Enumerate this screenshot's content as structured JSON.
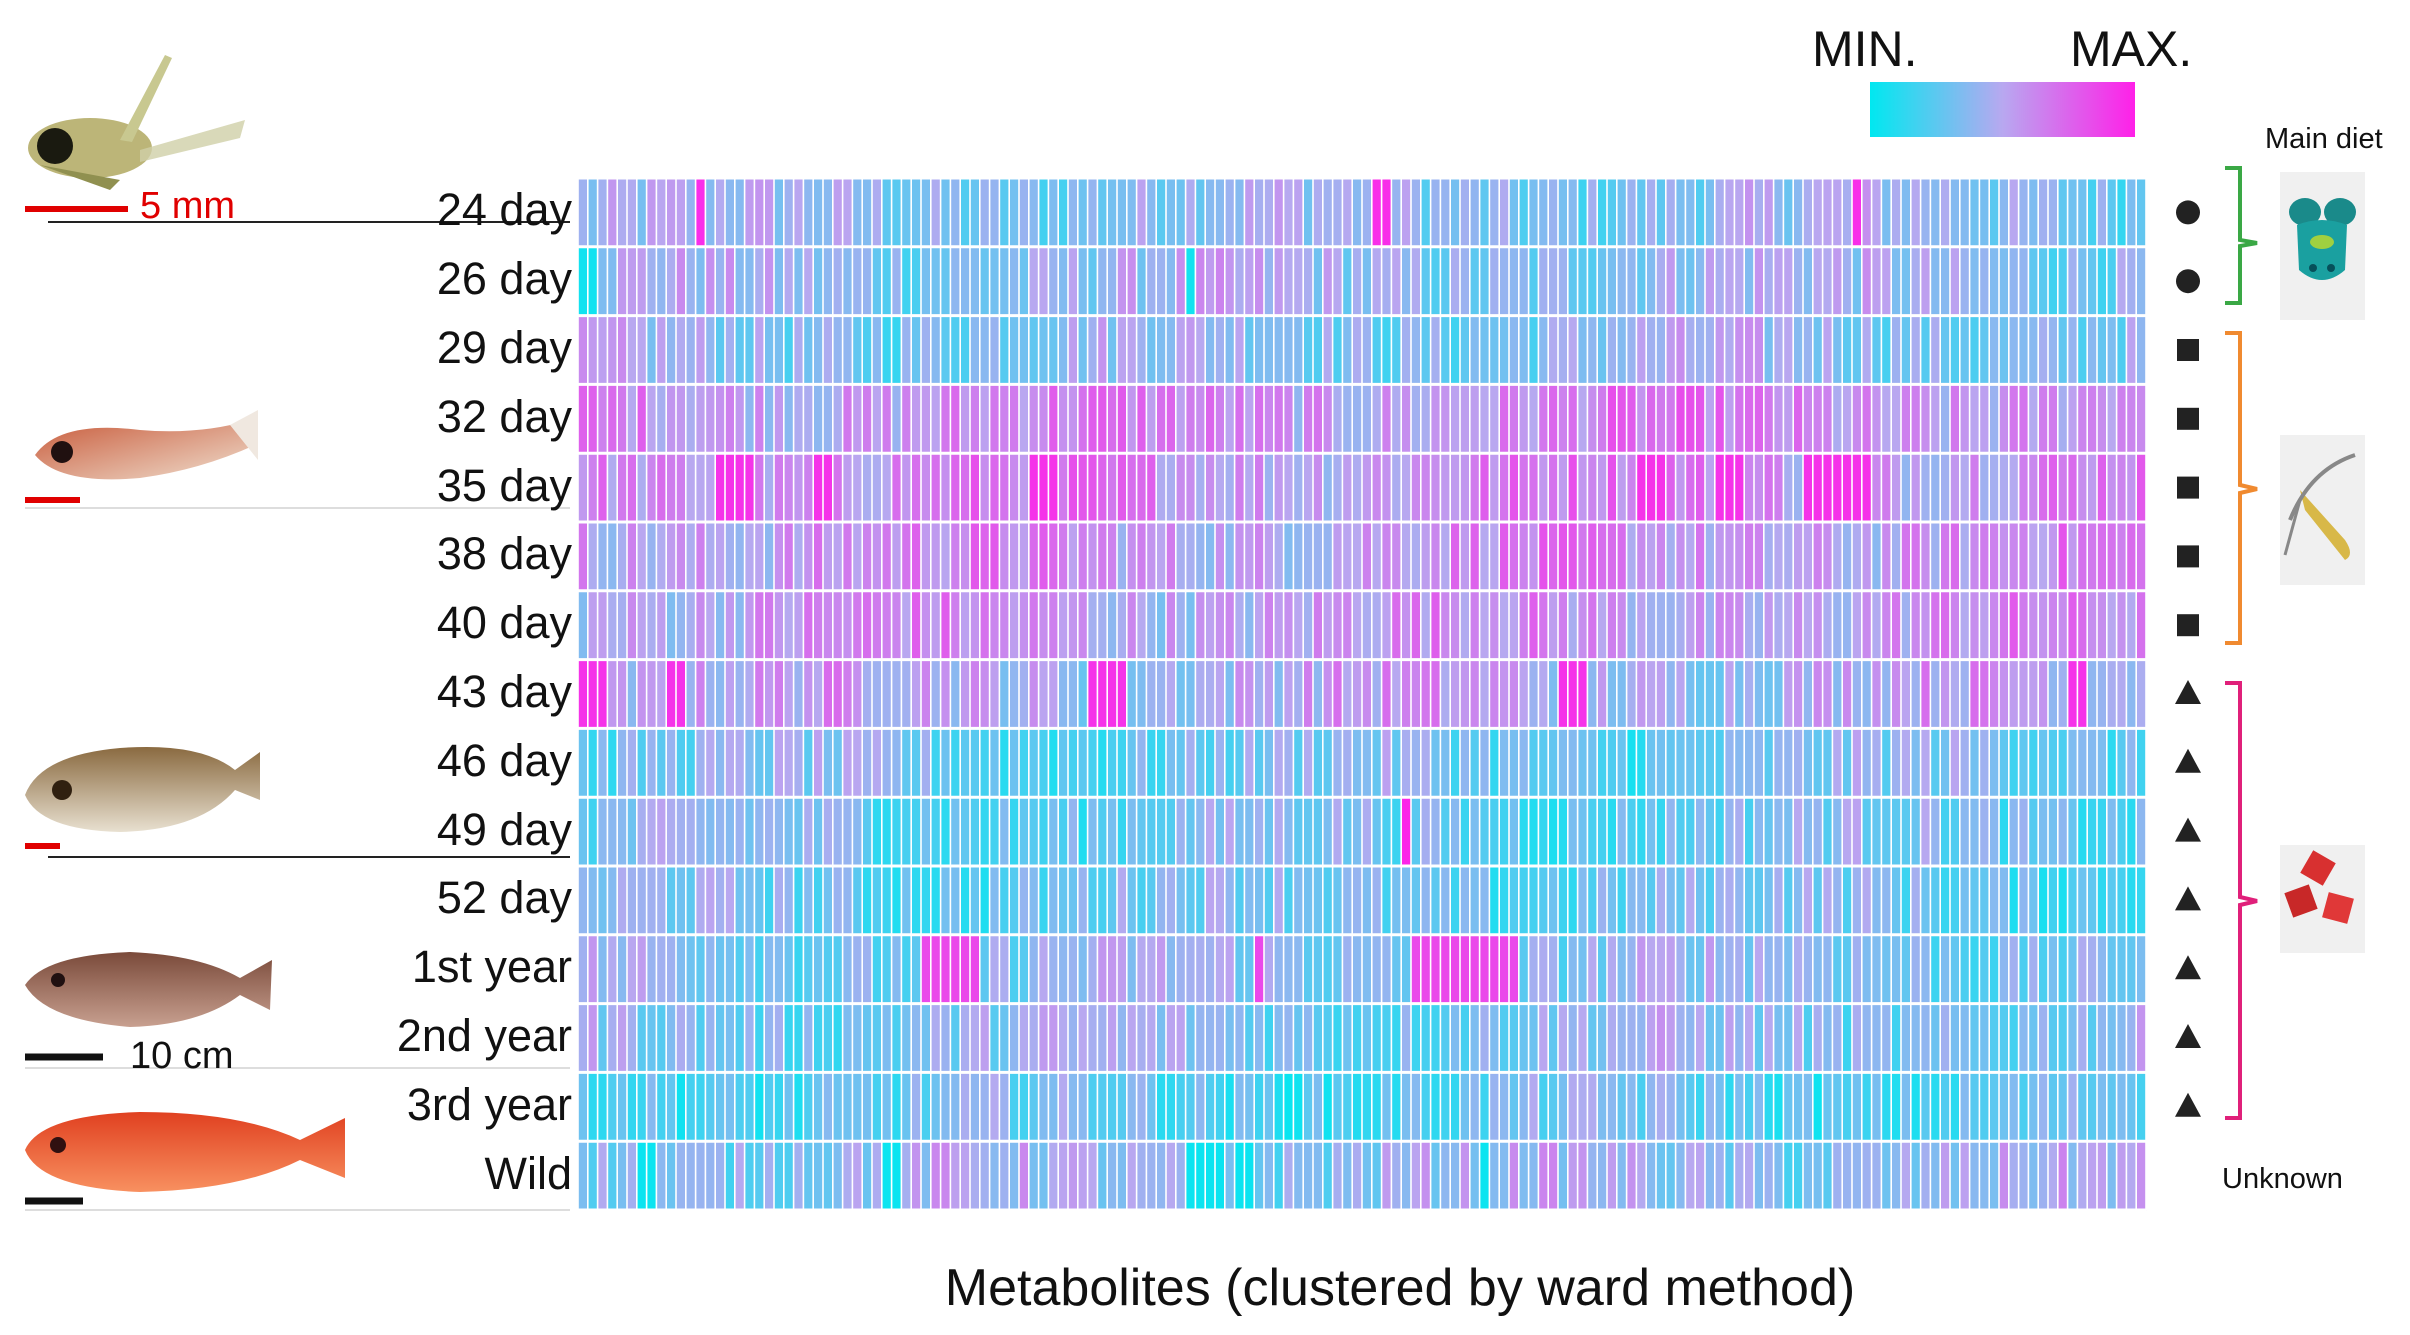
{
  "chart_data": {
    "type": "heatmap",
    "xlabel": "Metabolites (clustered by ward method)",
    "ylabel": "",
    "rows": [
      "24 day",
      "26 day",
      "29 day",
      "32 day",
      "35 day",
      "38 day",
      "40 day",
      "43 day",
      "46 day",
      "49 day",
      "52 day",
      "1st year",
      "2nd year",
      "3rd year",
      "Wild"
    ],
    "n_metabolites": 160,
    "value_range": [
      0,
      1
    ],
    "colorbar": {
      "min_label": "MIN.",
      "max_label": "MAX.",
      "low_color": "#00e8f0",
      "mid_color": "#b8a8f0",
      "high_color": "#ff20e8"
    },
    "row_symbols": [
      "circle",
      "circle",
      "square",
      "square",
      "square",
      "square",
      "square",
      "triangle",
      "triangle",
      "triangle",
      "triangle",
      "triangle",
      "triangle",
      "triangle",
      "none"
    ],
    "row_base_level": [
      0.38,
      0.4,
      0.38,
      0.6,
      0.62,
      0.58,
      0.56,
      0.5,
      0.3,
      0.3,
      0.3,
      0.36,
      0.36,
      0.26,
      0.4
    ],
    "hotspots": [
      {
        "row": "24 day",
        "metabolites": [
          12,
          81,
          82,
          130
        ],
        "value": 0.95
      },
      {
        "row": "26 day",
        "metabolites": [
          0,
          1,
          62
        ],
        "value": 0.05
      },
      {
        "row": "35 day",
        "metabolites": [
          14,
          15,
          16,
          17,
          24,
          25,
          46,
          47,
          48,
          108,
          109,
          110,
          116,
          117,
          118,
          125,
          126,
          127,
          128,
          129,
          130,
          131
        ],
        "value": 0.93
      },
      {
        "row": "43 day",
        "metabolites": [
          0,
          1,
          2,
          9,
          10,
          52,
          53,
          54,
          55,
          100,
          101,
          102,
          152,
          153
        ],
        "value": 0.93
      },
      {
        "row": "49 day",
        "metabolites": [
          84
        ],
        "value": 0.98
      },
      {
        "row": "1st year",
        "metabolites": [
          35,
          36,
          37,
          38,
          39,
          40,
          69,
          85,
          86,
          87,
          88,
          89,
          90,
          91,
          92,
          93,
          94,
          95
        ],
        "value": 0.85
      },
      {
        "row": "Wild",
        "metabolites": [
          6,
          7,
          31,
          32,
          62,
          63,
          64,
          65,
          67,
          68,
          92
        ],
        "value": 0.03
      }
    ],
    "annotations": {
      "diet_title": "Main diet",
      "unknown_label": "Unknown",
      "scale_5mm": "5 mm",
      "scale_10cm": "10 cm"
    },
    "diet_groups": [
      {
        "rows": [
          "24 day",
          "26 day"
        ],
        "bracket_color": "#3aa845",
        "icon": "rotifer-icon"
      },
      {
        "rows": [
          "29 day",
          "32 day",
          "35 day",
          "38 day",
          "40 day"
        ],
        "bracket_color": "#f08a30",
        "icon": "copepod-icon"
      },
      {
        "rows": [
          "43 day",
          "46 day",
          "49 day",
          "52 day",
          "1st year",
          "2nd year",
          "3rd year"
        ],
        "bracket_color": "#e0207a",
        "icon": "pellet-icon"
      }
    ]
  }
}
